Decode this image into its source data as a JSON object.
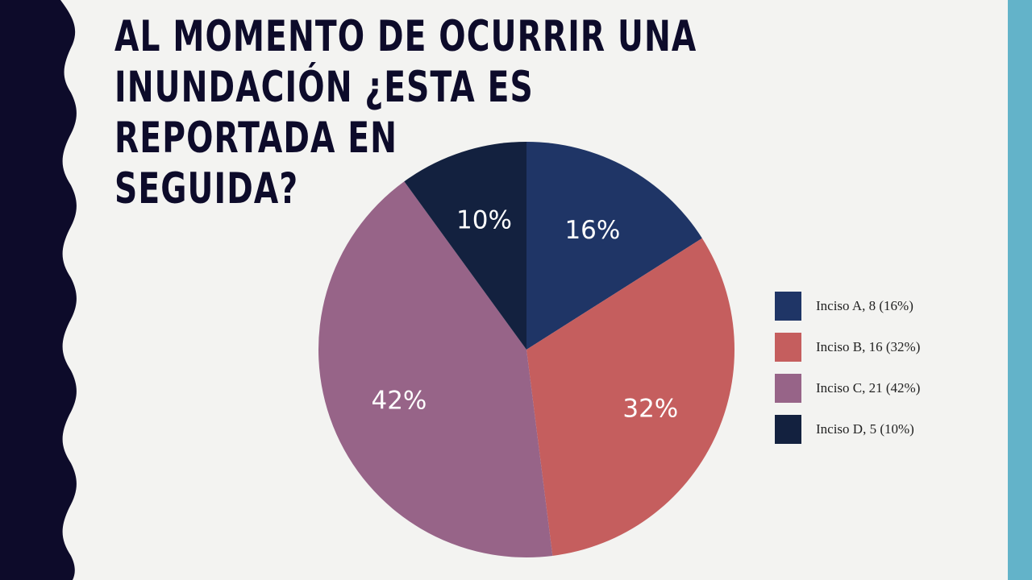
{
  "slide": {
    "title": "AL MOMENTO DE OCURRIR UNA\nINUNDACIÓN ¿ESTA ES REPORTADA EN\nSEGUIDA?",
    "colors": {
      "background": "#f3f3f1",
      "left_band": "#0d0b2a",
      "right_band": "#63b3c9"
    }
  },
  "chart_data": {
    "type": "pie",
    "title": "",
    "categories": [
      "Inciso A, 8 (16%)",
      "Inciso B, 16 (32%)",
      "Inciso C, 21 (42%)",
      "Inciso D, 5 (10%)"
    ],
    "values": [
      8,
      16,
      21,
      5
    ],
    "percent_labels": [
      "16%",
      "32%",
      "42%",
      "10%"
    ],
    "colors": [
      "#1f3566",
      "#c55e5e",
      "#976488",
      "#13213f"
    ],
    "legend_position": "right"
  }
}
